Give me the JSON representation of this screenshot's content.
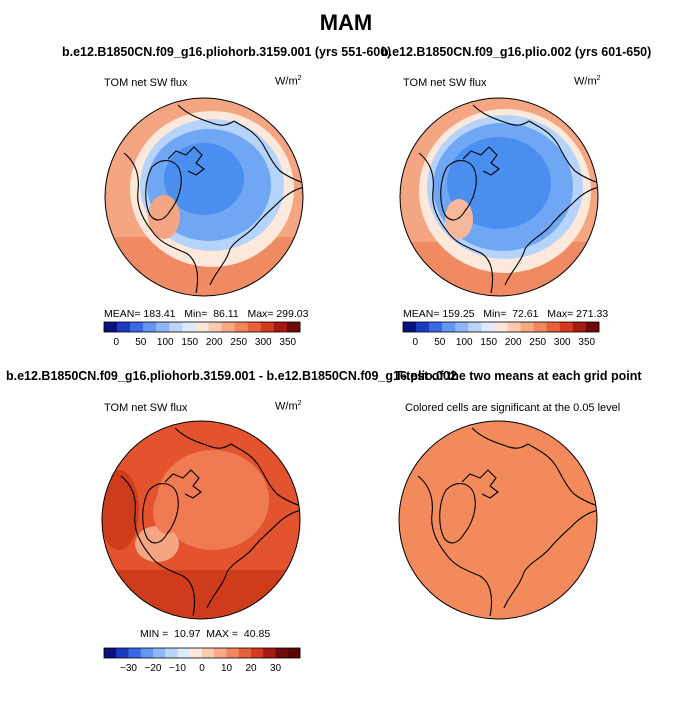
{
  "figure_title": "MAM",
  "colors": {
    "outline": "#000000",
    "warm_a": "#f4a582",
    "warm_b": "#f7b79a",
    "cream": "#fde9dc",
    "cool_a": "#4a8ef0",
    "cool_b": "#6fa7f5",
    "cool_c": "#b6d3fb",
    "diff_base": "#e3532e",
    "diff_dark": "#cf3c1c",
    "diff_light": "#f07a52",
    "ttest": "#f28a5c"
  },
  "chart_data": [
    {
      "type": "heatmap",
      "projection": "north-polar-stereographic",
      "title": "b.e12.B1850CN.f09_g16.pliohorb.3159.001 (yrs 551-600)",
      "left_label": "TOM net SW flux",
      "units_base": "W/m",
      "units_exp": "2",
      "stats": {
        "mean_label": "MEAN=",
        "mean": "183.41",
        "min_label": "Min=",
        "min": "86.11",
        "max_label": "Max=",
        "max": "299.03"
      },
      "colorbar": {
        "range": [
          -25,
          375
        ],
        "ticks": [
          0,
          50,
          100,
          150,
          200,
          250,
          300,
          350
        ],
        "tick_labels": [
          "0",
          "50",
          "100",
          "150",
          "200",
          "250",
          "300",
          "350"
        ],
        "colors": [
          "#08127e",
          "#1c3bc0",
          "#3b69e6",
          "#6497f2",
          "#8fb6f7",
          "#bad3fb",
          "#dde9fd",
          "#fde7da",
          "#fbcab0",
          "#f8a984",
          "#f3865c",
          "#e8603a",
          "#d33a20",
          "#a51a12",
          "#6e0a08"
        ]
      }
    },
    {
      "type": "heatmap",
      "projection": "north-polar-stereographic",
      "title": "b.e12.B1850CN.f09_g16.plio.002 (yrs 601-650)",
      "left_label": "TOM net SW flux",
      "units_base": "W/m",
      "units_exp": "2",
      "stats": {
        "mean_label": "MEAN=",
        "mean": "159.25",
        "min_label": "Min=",
        "min": "72.61",
        "max_label": "Max=",
        "max": "271.33"
      },
      "colorbar": {
        "range": [
          -25,
          375
        ],
        "ticks": [
          0,
          50,
          100,
          150,
          200,
          250,
          300,
          350
        ],
        "tick_labels": [
          "0",
          "50",
          "100",
          "150",
          "200",
          "250",
          "300",
          "350"
        ],
        "colors": [
          "#08127e",
          "#1c3bc0",
          "#3b69e6",
          "#6497f2",
          "#8fb6f7",
          "#bad3fb",
          "#dde9fd",
          "#fde7da",
          "#fbcab0",
          "#f8a984",
          "#f3865c",
          "#e8603a",
          "#d33a20",
          "#a51a12",
          "#6e0a08"
        ]
      }
    },
    {
      "type": "heatmap",
      "projection": "north-polar-stereographic",
      "title": "b.e12.B1850CN.f09_g16.pliohorb.3159.001 - b.e12.B1850CN.f09_g16.plio.002",
      "left_label": "TOM net SW flux",
      "units_base": "W/m",
      "units_exp": "2",
      "stats": {
        "min_label": "MIN =",
        "min": "10.97",
        "max_label": "MAX =",
        "max": "40.85"
      },
      "colorbar": {
        "range": [
          -40,
          40
        ],
        "ticks": [
          -30,
          -20,
          -10,
          0,
          10,
          20,
          30
        ],
        "tick_labels": [
          "−30",
          "−20",
          "−10",
          "0",
          "10",
          "20",
          "30"
        ],
        "colors": [
          "#08127e",
          "#1c3bc0",
          "#3b69e6",
          "#6497f2",
          "#8fb6f7",
          "#bad3fb",
          "#dde9fd",
          "#fde7da",
          "#fbcab0",
          "#f8a984",
          "#f3865c",
          "#e8603a",
          "#d33a20",
          "#a51a12",
          "#6e0a08",
          "#5a0505"
        ]
      }
    },
    {
      "type": "heatmap",
      "projection": "north-polar-stereographic",
      "title": "T-test of the two means at each grid point",
      "subtitle": "Colored cells are significant at the 0.05 level"
    }
  ]
}
